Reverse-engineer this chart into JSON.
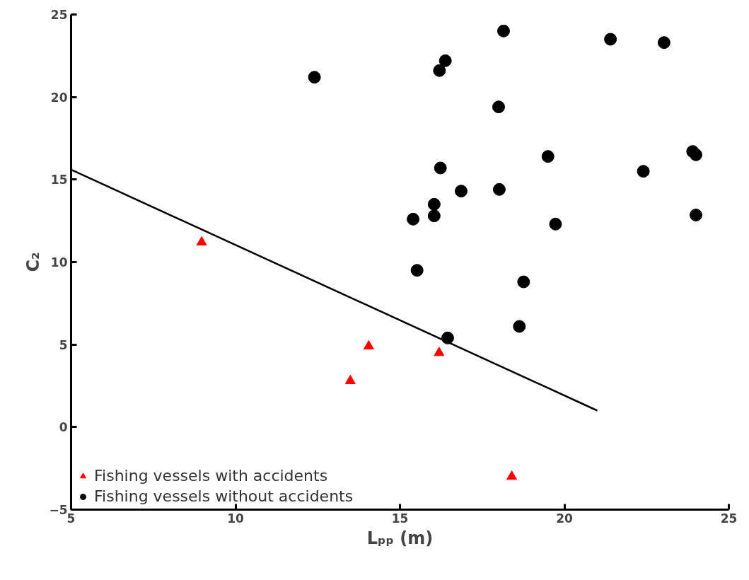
{
  "chart_data": {
    "type": "scatter",
    "xlabel": "Lₚₚ (m)",
    "ylabel": "C₂",
    "xlim": [
      5,
      25
    ],
    "ylim": [
      -5,
      25
    ],
    "xticks": [
      5,
      10,
      15,
      20,
      25
    ],
    "yticks": [
      -5,
      0,
      5,
      10,
      15,
      20,
      25
    ],
    "grid": false,
    "legend": "bottom left",
    "series": [
      {
        "name": "Fishing vessels with accidents",
        "color": "#ff0000",
        "marker": "triangle",
        "x": [
          8.97,
          14.05,
          13.49,
          16.19,
          18.4
        ],
        "values": [
          11.2,
          4.9,
          2.8,
          4.5,
          -3.0
        ]
      },
      {
        "name": "Fishing vessels without accidents",
        "color": "#000000",
        "marker": "circle",
        "x": [
          12.4,
          18.15,
          16.38,
          16.2,
          18.0,
          21.4,
          23.03,
          19.5,
          23.9,
          24.0,
          22.4,
          16.23,
          16.86,
          18.02,
          16.04,
          16.04,
          15.4,
          19.73,
          24.0,
          15.52,
          18.76,
          18.63,
          16.45
        ],
        "values": [
          21.2,
          24.0,
          22.2,
          21.6,
          19.4,
          23.5,
          23.3,
          16.4,
          16.7,
          16.5,
          15.5,
          15.7,
          14.3,
          14.4,
          13.5,
          12.8,
          12.6,
          12.3,
          12.85,
          9.5,
          8.8,
          6.1,
          5.4
        ]
      },
      {
        "type": "line",
        "color": "#000000",
        "line_style": "solid",
        "x": [
          5,
          21
        ],
        "values": [
          15.6,
          1.0
        ]
      }
    ]
  }
}
